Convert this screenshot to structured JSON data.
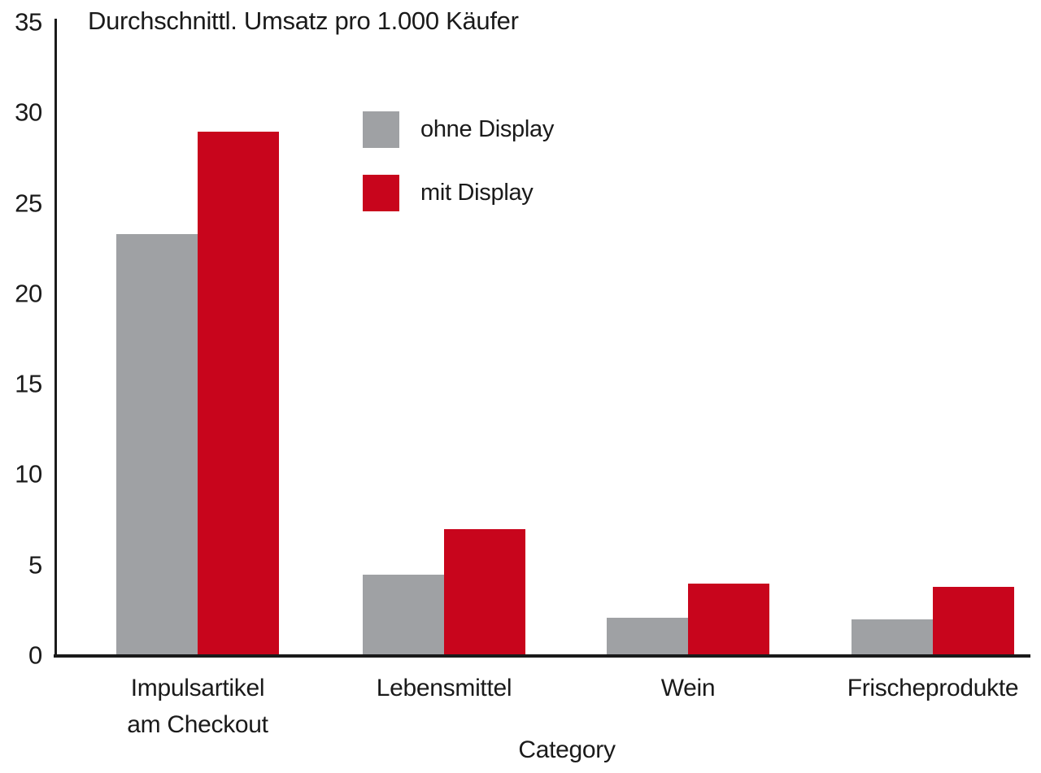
{
  "chart_data": {
    "type": "bar",
    "title": "Durchschnittl. Umsatz pro 1.000 Käufer",
    "xlabel": "Category",
    "ylabel": "",
    "categories": [
      "Impulsartikel\nam Checkout",
      "Lebensmittel",
      "Wein",
      "Frischeprodukte"
    ],
    "series": [
      {
        "name": "ohne Display",
        "color": "#9FA1A4",
        "values": [
          23.3,
          4.5,
          2.1,
          2.0
        ]
      },
      {
        "name": "mit Display",
        "color": "#C8051C",
        "values": [
          29.0,
          7.0,
          4.0,
          3.8
        ]
      }
    ],
    "ylim": [
      0,
      35
    ],
    "yticks": [
      0,
      5,
      10,
      15,
      20,
      25,
      30,
      35
    ],
    "grid": false,
    "legend_position": "upper-left-of-plot",
    "axis_color": "#1A1A1A",
    "text_color": "#1A1A1A"
  }
}
